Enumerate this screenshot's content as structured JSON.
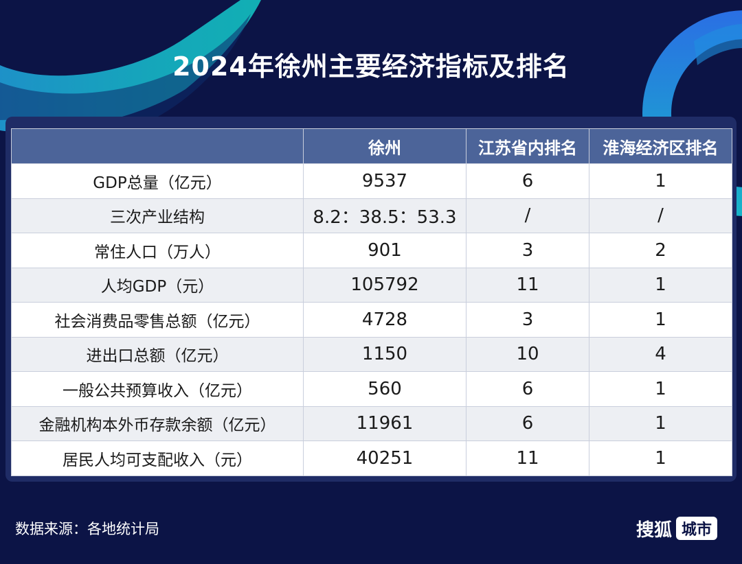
{
  "title": "2024年徐州主要经济指标及排名",
  "chart_data": {
    "type": "table",
    "columns": [
      "",
      "徐州",
      "江苏省内排名",
      "淮海经济区排名"
    ],
    "rows": [
      {
        "indicator": "GDP总量（亿元）",
        "value": "9537",
        "rank_jiangsu": "6",
        "rank_huaihai": "1"
      },
      {
        "indicator": "三次产业结构",
        "value": "8.2：38.5：53.3",
        "rank_jiangsu": "/",
        "rank_huaihai": "/"
      },
      {
        "indicator": "常住人口（万人）",
        "value": "901",
        "rank_jiangsu": "3",
        "rank_huaihai": "2"
      },
      {
        "indicator": "人均GDP（元）",
        "value": "105792",
        "rank_jiangsu": "11",
        "rank_huaihai": "1"
      },
      {
        "indicator": "社会消费品零售总额（亿元）",
        "value": "4728",
        "rank_jiangsu": "3",
        "rank_huaihai": "1"
      },
      {
        "indicator": "进出口总额（亿元）",
        "value": "1150",
        "rank_jiangsu": "10",
        "rank_huaihai": "4"
      },
      {
        "indicator": "一般公共预算收入（亿元）",
        "value": "560",
        "rank_jiangsu": "6",
        "rank_huaihai": "1"
      },
      {
        "indicator": "金融机构本外币存款余额（亿元）",
        "value": "11961",
        "rank_jiangsu": "6",
        "rank_huaihai": "1"
      },
      {
        "indicator": "居民人均可支配收入（元）",
        "value": "40251",
        "rank_jiangsu": "11",
        "rank_huaihai": "1"
      }
    ]
  },
  "footer": {
    "source": "数据来源：各地统计局",
    "brand_name": "搜狐",
    "brand_tag": "城市"
  },
  "colors": {
    "background": "#0c1446",
    "header_fill": "#4c6499",
    "accent_teal": "#17b3c9",
    "accent_blue": "#1e7de0"
  }
}
